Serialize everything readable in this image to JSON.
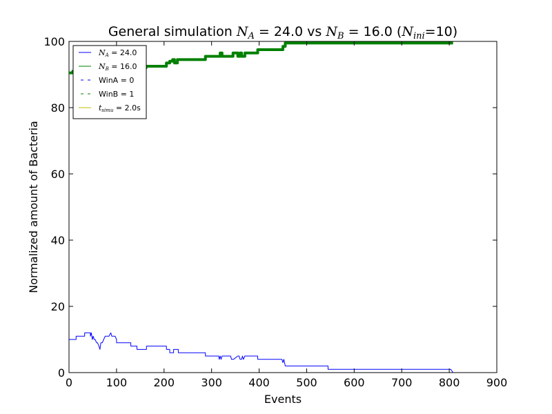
{
  "chart_data": {
    "type": "line",
    "title": {
      "prefix": "General simulation ",
      "na_sym": "N",
      "na_sub": "A",
      "na_val": " = 24.0 vs ",
      "nb_sym": "N",
      "nb_sub": "B",
      "nb_val": " = 16.0 (",
      "ni_sym": "N",
      "ni_sub": "ini",
      "ni_val": "=10)"
    },
    "xlabel": "Events",
    "ylabel": "Normalized amount of Bacteria",
    "xlim": [
      0,
      900
    ],
    "ylim": [
      0,
      100
    ],
    "xticks": [
      "0",
      "100",
      "200",
      "300",
      "400",
      "500",
      "600",
      "700",
      "800",
      "900"
    ],
    "yticks": [
      "0",
      "20",
      "40",
      "60",
      "80",
      "100"
    ],
    "grid": false,
    "legend_position": "top-left",
    "legend": [
      {
        "sym": "N",
        "sub": "A",
        "text": " = 24.0",
        "style": "solid",
        "color": "#0000ff"
      },
      {
        "sym": "N",
        "sub": "B",
        "text": " = 16.0",
        "style": "solid",
        "color": "#008000"
      },
      {
        "sym": "",
        "sub": "",
        "text": "WinA = 0",
        "style": "dashed",
        "color": "#0000ff"
      },
      {
        "sym": "",
        "sub": "",
        "text": "WinB = 1",
        "style": "dashed",
        "color": "#008000"
      },
      {
        "sym": "t",
        "sub": "simu",
        "text": " = 2.0s",
        "style": "solid",
        "color": "#bfbf00"
      }
    ],
    "series": [
      {
        "color": "#0000ff",
        "width": 1,
        "x": [
          0,
          15,
          15,
          25,
          25,
          33,
          33,
          45,
          45,
          47,
          49,
          51,
          53,
          55,
          58,
          60,
          63,
          65,
          67,
          70,
          73,
          76,
          80,
          84,
          88,
          90,
          92,
          97,
          100,
          100,
          130,
          130,
          143,
          143,
          163,
          163,
          205,
          205,
          212,
          212,
          220,
          220,
          230,
          230,
          287,
          287,
          315,
          316,
          318,
          320,
          322,
          340,
          342,
          344,
          346,
          355,
          358,
          360,
          363,
          365,
          367,
          370,
          397,
          397,
          448,
          450,
          452,
          455,
          458,
          545,
          545,
          803,
          803,
          808
        ],
        "y": [
          10,
          10,
          11,
          11,
          11,
          11,
          12,
          12,
          11,
          12,
          10,
          11,
          10,
          10,
          9,
          9,
          8,
          7,
          9,
          9,
          10,
          11,
          11,
          11,
          12,
          11,
          11,
          11,
          10,
          9,
          9,
          8,
          8,
          7,
          7,
          8,
          8,
          7,
          7,
          6,
          6,
          7,
          7,
          6,
          6,
          5,
          5,
          4,
          5,
          4,
          5,
          5,
          4,
          4,
          4,
          5,
          5,
          4,
          4,
          5,
          4,
          5,
          5,
          4,
          4,
          3,
          4,
          2,
          2,
          2,
          1,
          1,
          1,
          0
        ]
      },
      {
        "color": "#008000",
        "width": 4,
        "x": [
          0,
          8,
          8,
          150,
          150,
          162,
          162,
          168,
          168,
          205,
          205,
          212,
          212,
          218,
          218,
          222,
          222,
          228,
          228,
          232,
          232,
          287,
          287,
          318,
          318,
          322,
          322,
          345,
          345,
          355,
          355,
          360,
          360,
          363,
          363,
          367,
          367,
          370,
          370,
          397,
          397,
          450,
          450,
          455,
          455,
          545,
          545,
          808
        ],
        "y": [
          90.5,
          90.5,
          91,
          91,
          92,
          92,
          92.5,
          92.5,
          92.5,
          92.5,
          93.5,
          93.5,
          94,
          94,
          94.5,
          94.5,
          93.5,
          93.5,
          94.5,
          94.5,
          94.5,
          94.5,
          95.5,
          95.5,
          96.5,
          96.5,
          95.5,
          95.5,
          96.5,
          96.5,
          95.5,
          95.5,
          96.5,
          96.5,
          95.5,
          95.5,
          95.5,
          95.5,
          96.5,
          96.5,
          97.5,
          97.5,
          98.5,
          98.5,
          99.5,
          99.5,
          99.5,
          99.5
        ]
      }
    ]
  }
}
